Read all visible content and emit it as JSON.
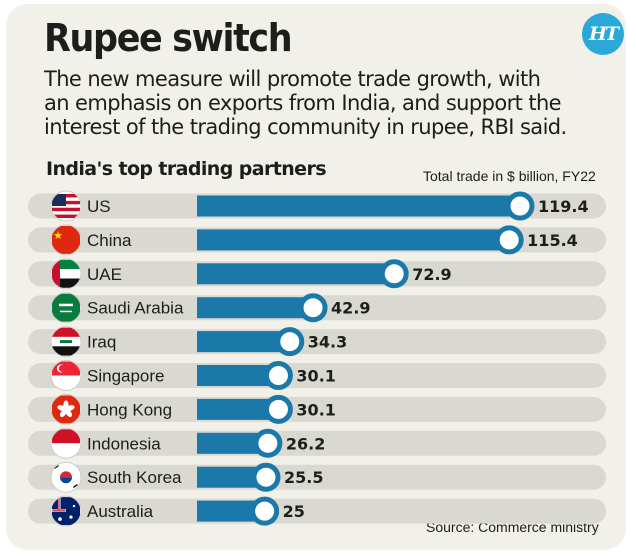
{
  "header": {
    "title": "Rupee switch",
    "logo": "HT",
    "subtitle_lines": [
      "The new measure will promote trade growth, with",
      "an emphasis on exports from India, and support the",
      "interest of the trading community in rupee, RBI said."
    ]
  },
  "chart_data": {
    "type": "bar",
    "orientation": "horizontal",
    "title": "India's top trading partners",
    "unit_note": "Total trade in $ billion, FY22",
    "source": "Source: Commerce ministry",
    "categories": [
      "US",
      "China",
      "UAE",
      "Saudi Arabia",
      "Iraq",
      "Singapore",
      "Hong Kong",
      "Indonesia",
      "South Korea",
      "Australia"
    ],
    "values": [
      119.4,
      115.4,
      72.9,
      42.9,
      34.3,
      30.1,
      30.1,
      26.2,
      25.5,
      25
    ],
    "value_labels": [
      "119.4",
      "115.4",
      "72.9",
      "42.9",
      "34.3",
      "30.1",
      "30.1",
      "26.2",
      "25.5",
      "25"
    ],
    "flag_icons": [
      "us-flag-icon",
      "china-flag-icon",
      "uae-flag-icon",
      "saudi-arabia-flag-icon",
      "iraq-flag-icon",
      "singapore-flag-icon",
      "hong-kong-flag-icon",
      "indonesia-flag-icon",
      "south-korea-flag-icon",
      "australia-flag-icon"
    ],
    "colors": {
      "bar": "#1a79a8",
      "track": "#dad9d1",
      "background": "#f1f0e9",
      "logo": "#2aa9d8"
    }
  }
}
